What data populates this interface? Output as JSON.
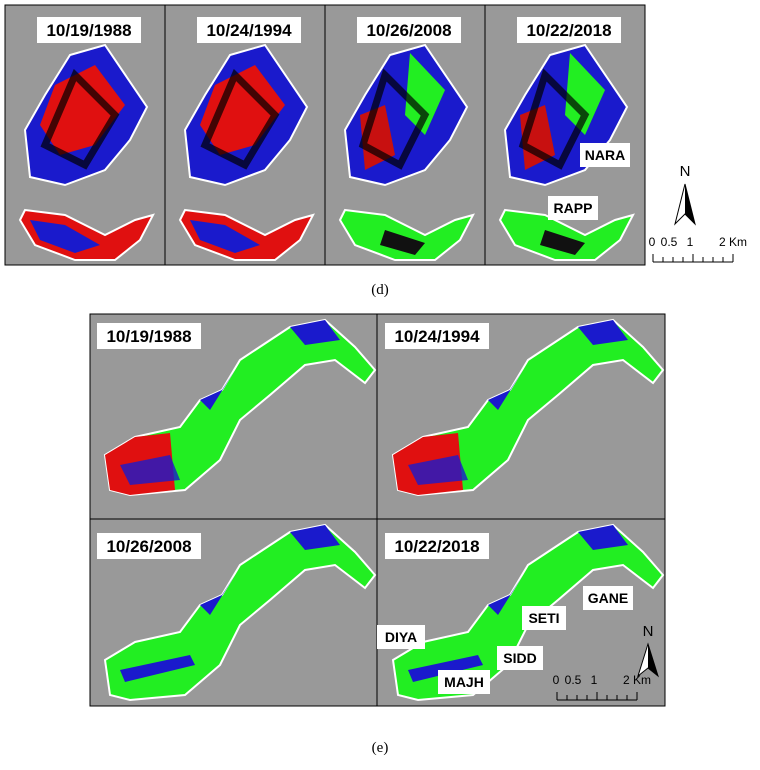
{
  "panel_d": {
    "dates": [
      "10/19/1988",
      "10/24/1994",
      "10/26/2008",
      "10/22/2018"
    ],
    "labels": [
      "NARA",
      "RAPP"
    ],
    "north": "N",
    "scale": [
      "0",
      "0.5",
      "1",
      "2 Km"
    ],
    "caption": "(d)"
  },
  "panel_e": {
    "dates": [
      "10/19/1988",
      "10/24/1994",
      "10/26/2008",
      "10/22/2018"
    ],
    "labels": [
      "GANE",
      "SETI",
      "SIDD",
      "DIYA",
      "MAJH"
    ],
    "north": "N",
    "scale": [
      "0",
      "0.5",
      "1",
      "2 Km"
    ],
    "caption": "(e)"
  }
}
